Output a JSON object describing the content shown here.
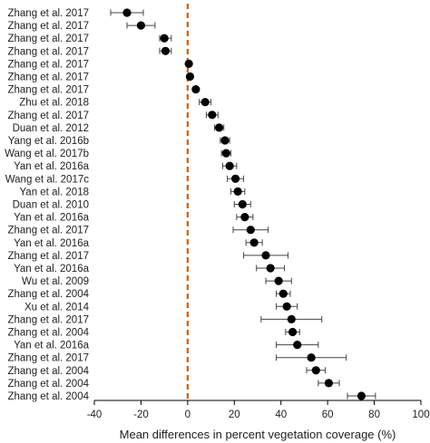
{
  "chart_data": {
    "type": "scatter",
    "title": "",
    "xlabel": "Mean differences in percent vegetation coverage (%)",
    "ylabel": "",
    "xlim": [
      -40,
      100
    ],
    "xticks": [
      -40,
      -20,
      0,
      20,
      40,
      60,
      80,
      100
    ],
    "reference_line": {
      "x": 0,
      "style": "dashed",
      "color": "#c8640a"
    },
    "point_color": "#000000",
    "grid": false,
    "legend": "none",
    "studies": [
      {
        "label": "Zhang et al. 2017",
        "mean": -26,
        "lo": -33,
        "hi": -19
      },
      {
        "label": "Zhang et al. 2017",
        "mean": -20,
        "lo": -26,
        "hi": -14
      },
      {
        "label": "Zhang et al. 2017",
        "mean": -10,
        "lo": -12,
        "hi": -7
      },
      {
        "label": "Zhang et al. 2017",
        "mean": -9.5,
        "lo": -12,
        "hi": -7
      },
      {
        "label": "Zhang et al. 2017",
        "mean": 0.5,
        "lo": 0,
        "hi": 1
      },
      {
        "label": "Zhang et al. 2017",
        "mean": 1,
        "lo": 0.5,
        "hi": 1.5
      },
      {
        "label": "Zhang et al. 2017",
        "mean": 3.5,
        "lo": 2.5,
        "hi": 4.5
      },
      {
        "label": "Zhu et al. 2018",
        "mean": 7.5,
        "lo": 5,
        "hi": 10
      },
      {
        "label": "Zhang et al. 2017",
        "mean": 10.5,
        "lo": 8,
        "hi": 13
      },
      {
        "label": "Duan et al. 2012",
        "mean": 13.5,
        "lo": 11.5,
        "hi": 15.5
      },
      {
        "label": "Yang et al. 2016b",
        "mean": 16,
        "lo": 14,
        "hi": 18
      },
      {
        "label": "Wang et al. 2017b",
        "mean": 16.5,
        "lo": 14.5,
        "hi": 18.5
      },
      {
        "label": "Yan et al. 2016a",
        "mean": 18,
        "lo": 15,
        "hi": 21
      },
      {
        "label": "Wang et al. 2017c",
        "mean": 20.5,
        "lo": 17,
        "hi": 24
      },
      {
        "label": "Yan et al. 2018",
        "mean": 21.5,
        "lo": 18.5,
        "hi": 24.5
      },
      {
        "label": "Duan et al. 2010",
        "mean": 23.5,
        "lo": 20,
        "hi": 27
      },
      {
        "label": "Yan et al. 2016a",
        "mean": 24.5,
        "lo": 21,
        "hi": 28
      },
      {
        "label": "Zhang et al. 2017",
        "mean": 27,
        "lo": 19.5,
        "hi": 34.5
      },
      {
        "label": "Yan et al. 2016a",
        "mean": 28.5,
        "lo": 25,
        "hi": 32
      },
      {
        "label": "Zhang et al. 2017",
        "mean": 33.5,
        "lo": 24,
        "hi": 43
      },
      {
        "label": "Yan et al. 2016a",
        "mean": 35.5,
        "lo": 29.5,
        "hi": 41.5
      },
      {
        "label": "Wu et al. 2009",
        "mean": 39,
        "lo": 33.5,
        "hi": 44.5
      },
      {
        "label": "Zhang et al. 2004",
        "mean": 41,
        "lo": 38,
        "hi": 44
      },
      {
        "label": "Xu et al. 2014",
        "mean": 42.5,
        "lo": 38,
        "hi": 47
      },
      {
        "label": "Zhang et al. 2017",
        "mean": 44.5,
        "lo": 31.5,
        "hi": 57.5
      },
      {
        "label": "Zhang et al. 2004",
        "mean": 45,
        "lo": 42,
        "hi": 48
      },
      {
        "label": "Yan et al. 2016a",
        "mean": 47,
        "lo": 38,
        "hi": 56
      },
      {
        "label": "Zhang et al. 2017",
        "mean": 53,
        "lo": 38,
        "hi": 68
      },
      {
        "label": "Zhang et al. 2004",
        "mean": 55,
        "lo": 51,
        "hi": 59
      },
      {
        "label": "Zhang et al. 2004",
        "mean": 60.5,
        "lo": 56,
        "hi": 65
      },
      {
        "label": "Zhang et al. 2004",
        "mean": 74.5,
        "lo": 68.5,
        "hi": 80.5
      }
    ]
  }
}
